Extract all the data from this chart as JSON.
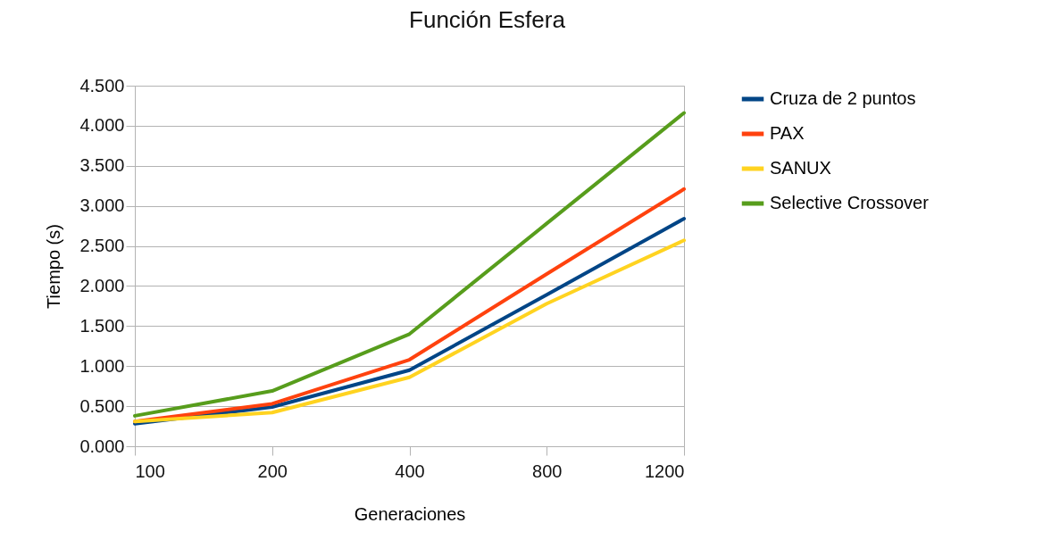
{
  "chart_data": {
    "type": "line",
    "title": "Función Esfera",
    "xlabel": "Generaciones",
    "ylabel": "Tiempo (s)",
    "categories": [
      "100",
      "200",
      "400",
      "800",
      "1200"
    ],
    "series": [
      {
        "name": "Cruza de 2 puntos",
        "color": "#004586",
        "values": [
          0.28,
          0.49,
          0.95,
          1.89,
          2.84
        ]
      },
      {
        "name": "PAX",
        "color": "#ff420e",
        "values": [
          0.31,
          0.53,
          1.08,
          2.15,
          3.21
        ]
      },
      {
        "name": "SANUX",
        "color": "#ffd320",
        "values": [
          0.31,
          0.42,
          0.86,
          1.78,
          2.57
        ]
      },
      {
        "name": "Selective Crossover",
        "color": "#579d1c",
        "values": [
          0.38,
          0.69,
          1.4,
          2.78,
          4.16
        ]
      }
    ],
    "ylim": [
      0,
      4.5
    ],
    "yticks": [
      {
        "value": 0,
        "label": "0.000"
      },
      {
        "value": 0.5,
        "label": "0.500"
      },
      {
        "value": 1,
        "label": "1.000"
      },
      {
        "value": 1.5,
        "label": "1.500"
      },
      {
        "value": 2,
        "label": "2.000"
      },
      {
        "value": 2.5,
        "label": "2.500"
      },
      {
        "value": 3,
        "label": "3.000"
      },
      {
        "value": 3.5,
        "label": "3.500"
      },
      {
        "value": 4,
        "label": "4.000"
      },
      {
        "value": 4.5,
        "label": "4.500"
      }
    ],
    "grid": "y",
    "legend": "right",
    "marker": "none",
    "line_style": "solid"
  }
}
